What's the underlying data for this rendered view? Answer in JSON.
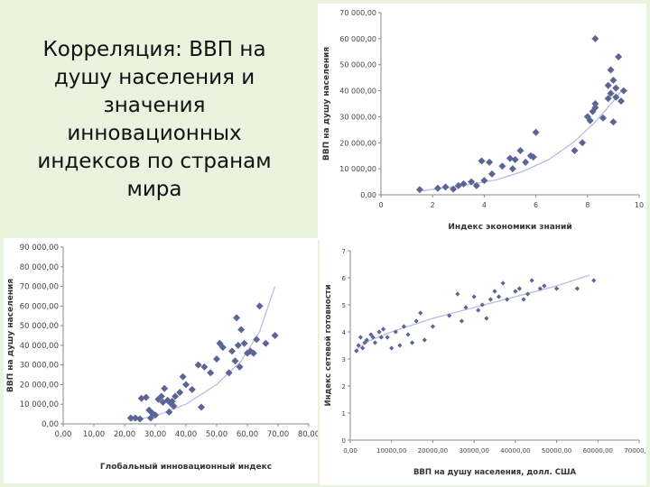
{
  "slide": {
    "title_lines": [
      "Корреляция: ВВП на",
      "душу населения и",
      "значения",
      "инновационных",
      "индексов по странам",
      "мира"
    ]
  },
  "colors": {
    "background": "#e9f4df",
    "marker": "#5a6595",
    "trend": "#b9bde0",
    "panel": "#ffffff"
  },
  "chart_data": [
    {
      "type": "scatter",
      "title": "",
      "xlabel": "Индекс экономики знаний",
      "ylabel": "ВВП на душу населения",
      "xlim": [
        0,
        10
      ],
      "ylim": [
        0,
        70000
      ],
      "xticks": [
        0,
        2,
        4,
        6,
        8,
        10
      ],
      "xtick_labels": [
        "0",
        "2",
        "4",
        "6",
        "8",
        "10"
      ],
      "yticks": [
        0,
        10000,
        20000,
        30000,
        40000,
        50000,
        60000,
        70000
      ],
      "ytick_labels": [
        "0,00",
        "10 000,00",
        "20 000,00",
        "30 000,00",
        "40 000,00",
        "50 000,00",
        "60 000,00",
        "70 000,00"
      ],
      "grid": false,
      "trendline": "exponential",
      "trend": [
        [
          1.5,
          1500
        ],
        [
          3,
          3200
        ],
        [
          4.5,
          5800
        ],
        [
          5.5,
          9000
        ],
        [
          6.5,
          13500
        ],
        [
          7.5,
          20500
        ],
        [
          8.3,
          28000
        ],
        [
          9.0,
          36000
        ],
        [
          9.4,
          41000
        ]
      ],
      "points": [
        [
          1.5,
          2000
        ],
        [
          2.2,
          2500
        ],
        [
          2.5,
          3000
        ],
        [
          2.8,
          2200
        ],
        [
          3.0,
          3500
        ],
        [
          3.2,
          4200
        ],
        [
          3.5,
          5000
        ],
        [
          3.7,
          3500
        ],
        [
          3.9,
          13000
        ],
        [
          4.0,
          5500
        ],
        [
          4.2,
          12500
        ],
        [
          4.3,
          8000
        ],
        [
          4.7,
          11000
        ],
        [
          5.0,
          14000
        ],
        [
          5.1,
          10000
        ],
        [
          5.2,
          13500
        ],
        [
          5.4,
          17000
        ],
        [
          5.6,
          12500
        ],
        [
          5.8,
          15000
        ],
        [
          5.9,
          14500
        ],
        [
          6.0,
          24000
        ],
        [
          7.5,
          17000
        ],
        [
          7.8,
          20000
        ],
        [
          8.0,
          30000
        ],
        [
          8.1,
          28500
        ],
        [
          8.2,
          32000
        ],
        [
          8.3,
          33500
        ],
        [
          8.3,
          35000
        ],
        [
          8.3,
          60000
        ],
        [
          8.6,
          29500
        ],
        [
          8.8,
          37000
        ],
        [
          8.8,
          42000
        ],
        [
          8.9,
          48000
        ],
        [
          8.9,
          39000
        ],
        [
          9.0,
          44000
        ],
        [
          9.0,
          28000
        ],
        [
          9.1,
          37500
        ],
        [
          9.1,
          41000
        ],
        [
          9.2,
          53000
        ],
        [
          9.3,
          36000
        ],
        [
          9.4,
          40000
        ]
      ]
    },
    {
      "type": "scatter",
      "title": "",
      "xlabel": "Глобальный инновационный индекс",
      "ylabel": "ВВП на душу населения",
      "xlim": [
        0,
        80
      ],
      "ylim": [
        0,
        90000
      ],
      "xticks": [
        0,
        10,
        20,
        30,
        40,
        50,
        60,
        70,
        80
      ],
      "xtick_labels": [
        "0,00",
        "10,00",
        "20,00",
        "30,00",
        "40,00",
        "50,00",
        "60,00",
        "70,00",
        "80,00"
      ],
      "yticks": [
        0,
        10000,
        20000,
        30000,
        40000,
        50000,
        60000,
        70000,
        80000,
        90000
      ],
      "ytick_labels": [
        "0,00",
        "10 000,00",
        "20 000,00",
        "30 000,00",
        "40 000,00",
        "50 000,00",
        "60 000,00",
        "70 000,00",
        "80 000,00",
        "90 000,00"
      ],
      "grid": false,
      "trendline": "exponential",
      "trend": [
        [
          22,
          1500
        ],
        [
          30,
          4000
        ],
        [
          40,
          10000
        ],
        [
          50,
          20000
        ],
        [
          58,
          32000
        ],
        [
          64,
          47000
        ],
        [
          69,
          70000
        ]
      ],
      "points": [
        [
          22,
          3000
        ],
        [
          23.5,
          3000
        ],
        [
          25,
          2500
        ],
        [
          25.5,
          13000
        ],
        [
          27,
          13500
        ],
        [
          28,
          7000
        ],
        [
          28.5,
          3000
        ],
        [
          29,
          5500
        ],
        [
          30,
          4500
        ],
        [
          31,
          12500
        ],
        [
          32,
          14000
        ],
        [
          32.5,
          11000
        ],
        [
          33,
          18000
        ],
        [
          34,
          12000
        ],
        [
          34.5,
          6000
        ],
        [
          35,
          10500
        ],
        [
          35.5,
          11500
        ],
        [
          36,
          9000
        ],
        [
          36.5,
          14000
        ],
        [
          38,
          16000
        ],
        [
          39,
          24000
        ],
        [
          40,
          20000
        ],
        [
          42,
          17500
        ],
        [
          44,
          30000
        ],
        [
          45,
          8500
        ],
        [
          46,
          29000
        ],
        [
          48,
          26000
        ],
        [
          50,
          33000
        ],
        [
          51,
          41000
        ],
        [
          52,
          39000
        ],
        [
          54,
          26000
        ],
        [
          55,
          37000
        ],
        [
          56,
          32000
        ],
        [
          56.5,
          54000
        ],
        [
          57,
          40000
        ],
        [
          57.5,
          29000
        ],
        [
          58,
          48000
        ],
        [
          59,
          41000
        ],
        [
          60,
          36000
        ],
        [
          61,
          37000
        ],
        [
          62,
          36000
        ],
        [
          63,
          43000
        ],
        [
          64,
          60000
        ],
        [
          66,
          41000
        ],
        [
          69,
          45000
        ]
      ]
    },
    {
      "type": "scatter",
      "title": "",
      "xlabel": "ВВП на душу населения, долл. США",
      "ylabel": "Индекс сетевой готовности",
      "xlim": [
        0,
        70000
      ],
      "ylim": [
        0,
        7
      ],
      "xticks": [
        0,
        10000,
        20000,
        30000,
        40000,
        50000,
        60000,
        70000
      ],
      "xtick_labels": [
        "0,00",
        "10000,00",
        "20000,00",
        "30000,00",
        "40000,00",
        "50000,00",
        "60000,00",
        "70000,00"
      ],
      "yticks": [
        0,
        1,
        2,
        3,
        4,
        5,
        6,
        7
      ],
      "ytick_labels": [
        "0",
        "1",
        "2",
        "3",
        "4",
        "5",
        "6",
        "7"
      ],
      "grid": false,
      "trendline": "logarithmic",
      "trend": [
        [
          1000,
          3.3
        ],
        [
          5000,
          3.7
        ],
        [
          10000,
          4.0
        ],
        [
          20000,
          4.5
        ],
        [
          30000,
          4.9
        ],
        [
          40000,
          5.3
        ],
        [
          50000,
          5.7
        ],
        [
          58000,
          6.1
        ]
      ],
      "points": [
        [
          1500,
          3.3
        ],
        [
          2000,
          3.5
        ],
        [
          2500,
          3.8
        ],
        [
          3000,
          3.4
        ],
        [
          3500,
          3.6
        ],
        [
          4000,
          3.7
        ],
        [
          5000,
          3.9
        ],
        [
          5500,
          3.8
        ],
        [
          6000,
          3.6
        ],
        [
          7000,
          4.0
        ],
        [
          7500,
          3.8
        ],
        [
          8000,
          4.1
        ],
        [
          9000,
          3.8
        ],
        [
          10000,
          3.4
        ],
        [
          11000,
          4.0
        ],
        [
          12000,
          3.5
        ],
        [
          13000,
          4.2
        ],
        [
          14000,
          3.9
        ],
        [
          15000,
          3.6
        ],
        [
          16000,
          4.4
        ],
        [
          17000,
          4.7
        ],
        [
          18000,
          3.7
        ],
        [
          20000,
          4.2
        ],
        [
          24000,
          4.6
        ],
        [
          26000,
          5.4
        ],
        [
          27000,
          4.4
        ],
        [
          28000,
          4.9
        ],
        [
          30000,
          5.3
        ],
        [
          31000,
          4.8
        ],
        [
          32000,
          5.0
        ],
        [
          33000,
          4.5
        ],
        [
          34000,
          5.2
        ],
        [
          35000,
          5.5
        ],
        [
          36000,
          5.3
        ],
        [
          37000,
          5.8
        ],
        [
          38000,
          5.2
        ],
        [
          40000,
          5.5
        ],
        [
          41000,
          5.6
        ],
        [
          42000,
          5.2
        ],
        [
          43000,
          5.4
        ],
        [
          44000,
          5.9
        ],
        [
          46000,
          5.6
        ],
        [
          47000,
          5.7
        ],
        [
          50000,
          5.6
        ],
        [
          55000,
          5.6
        ],
        [
          59000,
          5.9
        ]
      ]
    }
  ]
}
